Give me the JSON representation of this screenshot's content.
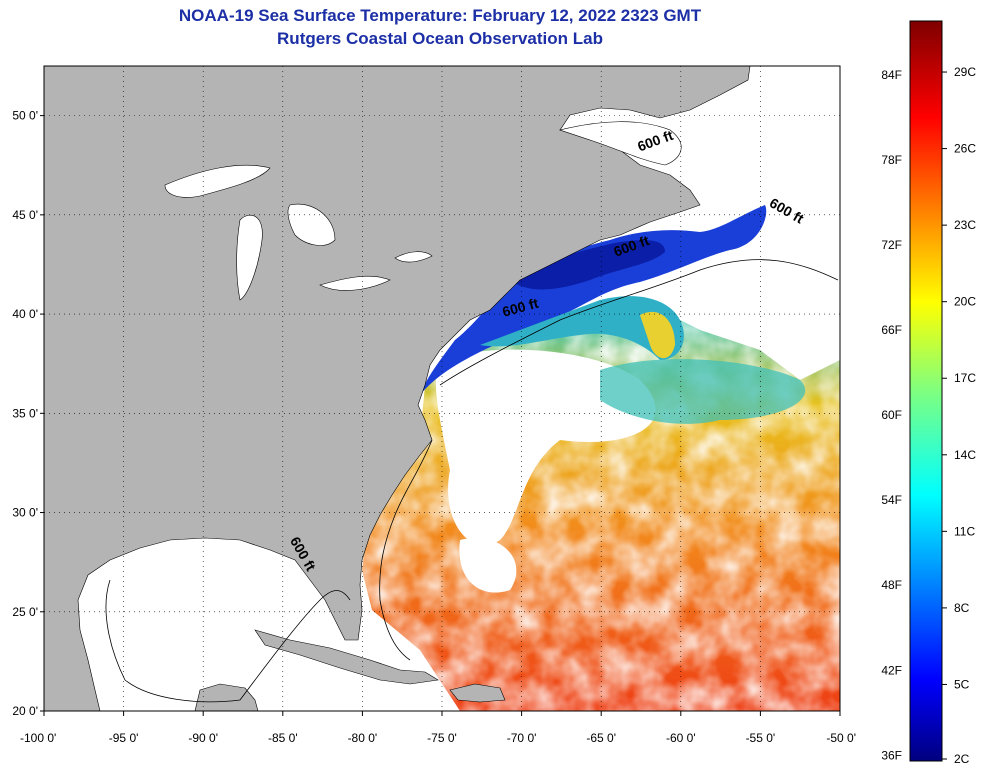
{
  "header": {
    "title": "NOAA-19 Sea Surface Temperature:  February 12, 2022 2323 GMT",
    "subtitle": "Rutgers Coastal Ocean Observation Lab"
  },
  "map": {
    "lon_range": [
      -100,
      -50
    ],
    "lat_range": [
      20,
      52.5
    ],
    "lon_ticks": [
      {
        "value": -100,
        "label": "-100 0'"
      },
      {
        "value": -95,
        "label": "-95 0'"
      },
      {
        "value": -90,
        "label": "-90 0'"
      },
      {
        "value": -85,
        "label": "-85 0'"
      },
      {
        "value": -80,
        "label": "-80 0'"
      },
      {
        "value": -75,
        "label": "-75 0'"
      },
      {
        "value": -70,
        "label": "-70 0'"
      },
      {
        "value": -65,
        "label": "-65 0'"
      },
      {
        "value": -60,
        "label": "-60 0'"
      },
      {
        "value": -55,
        "label": "-55 0'"
      },
      {
        "value": -50,
        "label": "-50 0'"
      }
    ],
    "lat_ticks": [
      {
        "value": 20,
        "label": "20 0'"
      },
      {
        "value": 25,
        "label": "25 0'"
      },
      {
        "value": 30,
        "label": "30 0'"
      },
      {
        "value": 35,
        "label": "35 0'"
      },
      {
        "value": 40,
        "label": "40 0'"
      },
      {
        "value": 45,
        "label": "45 0'"
      },
      {
        "value": 50,
        "label": "50 0'"
      }
    ],
    "depth_labels": [
      {
        "text": "600 ft",
        "lon": -61.5,
        "lat": 48.5
      },
      {
        "text": "600 ft",
        "lon": -53.5,
        "lat": 45.0
      },
      {
        "text": "600 ft",
        "lon": -63.0,
        "lat": 43.2
      },
      {
        "text": "600 ft",
        "lon": -70.0,
        "lat": 40.1
      },
      {
        "text": "600 ft",
        "lon": -84.0,
        "lat": 27.8
      }
    ],
    "colors": {
      "land": "#b4b4b4",
      "cloud": "#ffffff",
      "grid": "#000000"
    }
  },
  "colorbar": {
    "min_c": 2,
    "max_c": 31,
    "fahrenheit_ticks": [
      "84F",
      "78F",
      "72F",
      "66F",
      "60F",
      "54F",
      "48F",
      "42F",
      "36F"
    ],
    "celsius_ticks": [
      "29C",
      "26C",
      "23C",
      "20C",
      "17C",
      "14C",
      "11C",
      "8C",
      "5C",
      "2C"
    ]
  }
}
